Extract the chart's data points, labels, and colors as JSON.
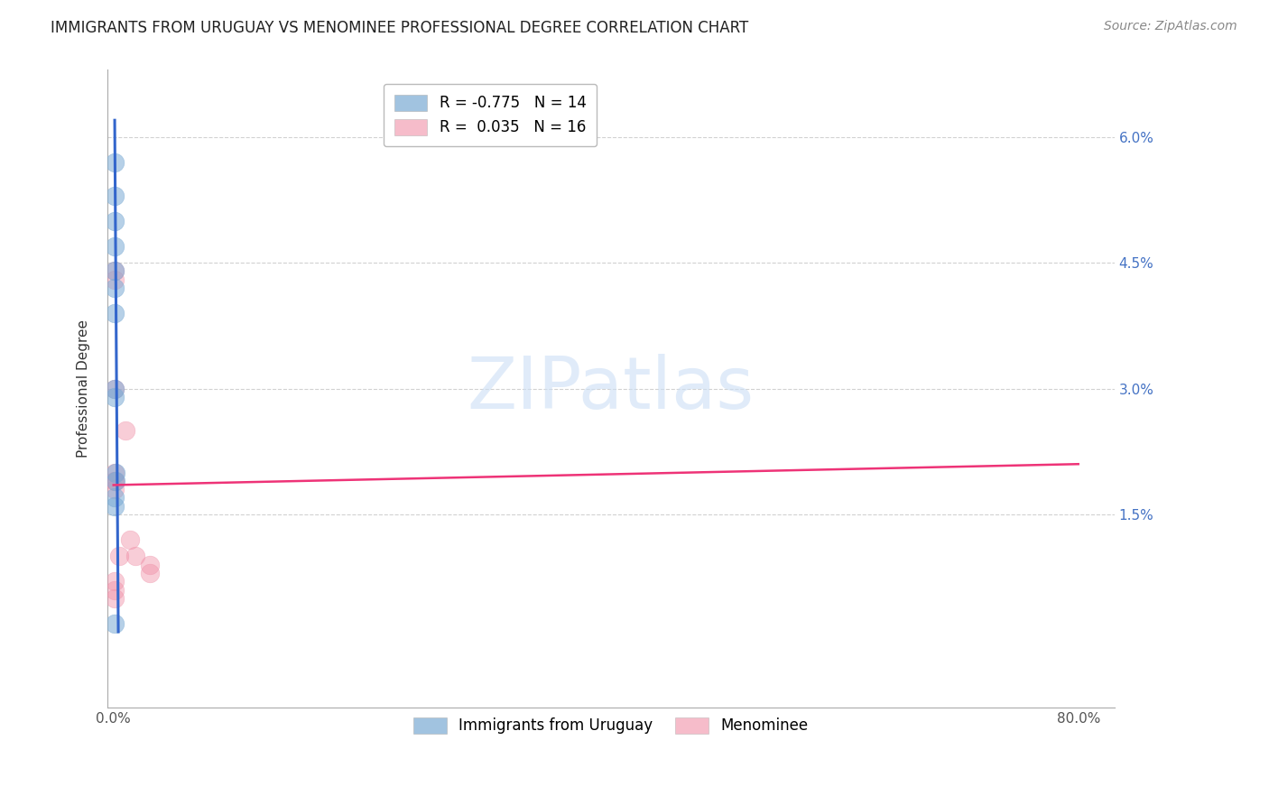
{
  "title": "IMMIGRANTS FROM URUGUAY VS MENOMINEE PROFESSIONAL DEGREE CORRELATION CHART",
  "source": "Source: ZipAtlas.com",
  "ylabel": "Professional Degree",
  "watermark": "ZIPatlas",
  "legend_entries": [
    {
      "label": "R = -0.775   N = 14",
      "color": "#a8c4e0"
    },
    {
      "label": "R =  0.035   N = 16",
      "color": "#f4a8b8"
    }
  ],
  "legend_bottom": [
    "Immigrants from Uruguay",
    "Menominee"
  ],
  "xlim": [
    -0.005,
    0.83
  ],
  "ylim": [
    -0.008,
    0.068
  ],
  "x_ticks": [
    0.0,
    0.8
  ],
  "y_ticks": [
    0.015,
    0.03,
    0.045,
    0.06
  ],
  "y_tick_labels": [
    "1.5%",
    "3.0%",
    "4.5%",
    "6.0%"
  ],
  "blue_scatter": [
    [
      0.001,
      0.057
    ],
    [
      0.001,
      0.053
    ],
    [
      0.001,
      0.05
    ],
    [
      0.001,
      0.047
    ],
    [
      0.001,
      0.044
    ],
    [
      0.001,
      0.042
    ],
    [
      0.001,
      0.039
    ],
    [
      0.001,
      0.03
    ],
    [
      0.001,
      0.029
    ],
    [
      0.002,
      0.02
    ],
    [
      0.002,
      0.019
    ],
    [
      0.001,
      0.017
    ],
    [
      0.001,
      0.016
    ],
    [
      0.001,
      0.002
    ]
  ],
  "pink_scatter": [
    [
      0.001,
      0.044
    ],
    [
      0.001,
      0.043
    ],
    [
      0.001,
      0.03
    ],
    [
      0.01,
      0.025
    ],
    [
      0.001,
      0.02
    ],
    [
      0.001,
      0.019
    ],
    [
      0.001,
      0.019
    ],
    [
      0.001,
      0.018
    ],
    [
      0.014,
      0.012
    ],
    [
      0.005,
      0.01
    ],
    [
      0.018,
      0.01
    ],
    [
      0.001,
      0.007
    ],
    [
      0.001,
      0.006
    ],
    [
      0.001,
      0.005
    ],
    [
      0.03,
      0.009
    ],
    [
      0.03,
      0.008
    ]
  ],
  "blue_line_x": [
    0.001,
    0.004
  ],
  "blue_line_y": [
    0.062,
    0.001
  ],
  "pink_line_x": [
    0.0,
    0.8
  ],
  "pink_line_y": [
    0.0185,
    0.021
  ],
  "blue_color": "#7aaad4",
  "pink_color": "#f090a8",
  "blue_scatter_alpha": 0.55,
  "pink_scatter_alpha": 0.45,
  "blue_line_color": "#3366cc",
  "pink_line_color": "#ee3377",
  "title_fontsize": 12,
  "source_fontsize": 10,
  "axis_label_fontsize": 11,
  "tick_fontsize": 11,
  "background_color": "#ffffff",
  "grid_color": "#cccccc",
  "scatter_size": 220
}
